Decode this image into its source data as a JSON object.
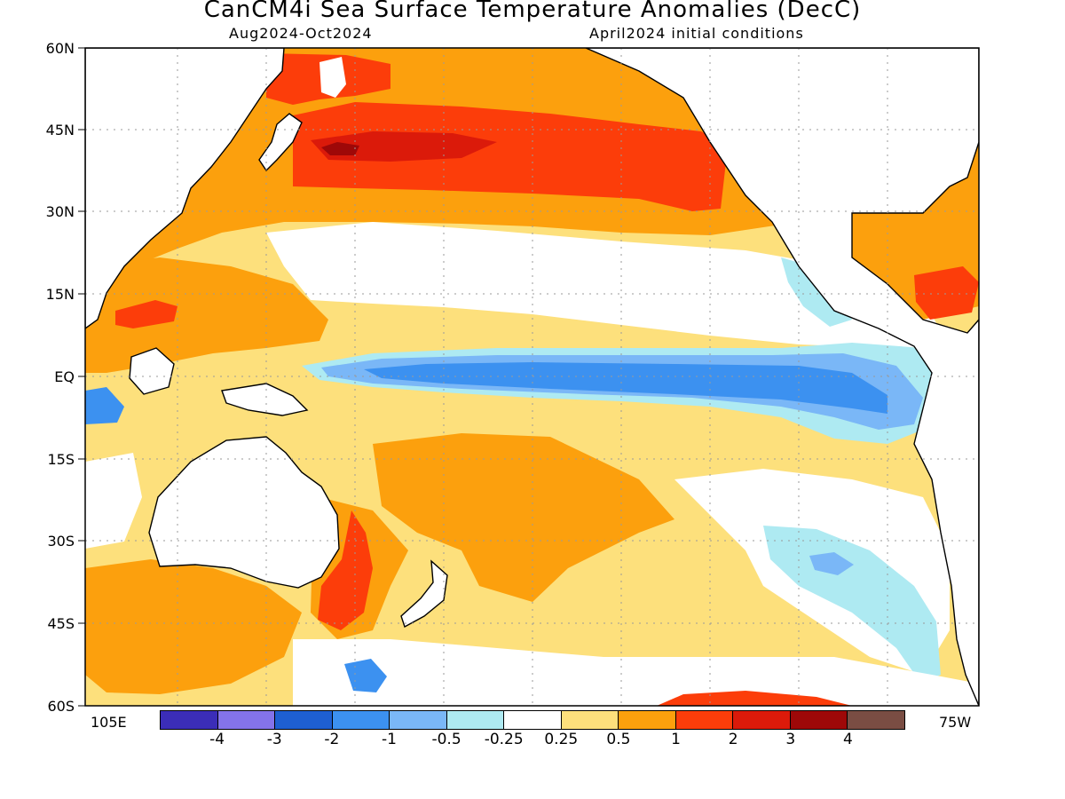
{
  "header": {
    "title": "CanCM4i Sea Surface Temperature Anomalies (DecC)",
    "period": "Aug2024-Oct2024",
    "initial_conditions": "April2024 initial conditions"
  },
  "axes": {
    "lat_labels": [
      "60N",
      "45N",
      "30N",
      "15N",
      "EQ",
      "15S",
      "30S",
      "45S",
      "60S"
    ],
    "lon_left": "105E",
    "lon_right": "75W"
  },
  "colorbar": {
    "colors": [
      "#3b2db8",
      "#8473ea",
      "#1e5fd1",
      "#3c91f0",
      "#7ab7f7",
      "#aeeaf2",
      "#ffffff",
      "#fde07c",
      "#fca00d",
      "#fc3d0a",
      "#db1a0a",
      "#9e0808",
      "#7a4d43"
    ],
    "labels": [
      "-4",
      "-3",
      "-2",
      "-1",
      "-0.5",
      "-0.25",
      "0.25",
      "0.5",
      "1",
      "2",
      "3",
      "4"
    ]
  },
  "palette": {
    "land": "#ffffff",
    "coast": "#000000",
    "grid": "#9a9a9a"
  }
}
